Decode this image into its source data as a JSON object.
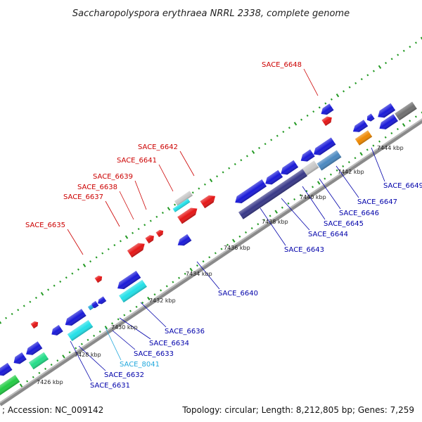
{
  "title": "Saccharopolyspora erythraea NRRL 2338, complete genome",
  "footer": {
    "accession": "; Accession: NC_009142",
    "summary": "Topology: circular; Length: 8,212,805 bp; Genes: 7,259"
  },
  "ruler_ticks": [
    "7426 kbp",
    "7428 kbp",
    "7430 kbp",
    "7432 kbp",
    "7434 kbp",
    "7436 kbp",
    "7438 kbp",
    "7440 kbp",
    "7442 kbp",
    "7444 kbp"
  ],
  "forward_labels": [
    "SACE_6635",
    "SACE_6637",
    "SACE_6638",
    "SACE_6639",
    "SACE_6641",
    "SACE_6642",
    "SACE_6648"
  ],
  "reverse_labels": [
    "SACE_6631",
    "SACE_6632",
    "SACE_8041",
    "SACE_6633",
    "SACE_6634",
    "SACE_6636",
    "SACE_6640",
    "SACE_6643",
    "SACE_6644",
    "SACE_6645",
    "SACE_6646",
    "SACE_6647",
    "SACE_6649"
  ],
  "colors": {
    "forward": "#e51616",
    "reverse": "#1a1ad8",
    "navy": "#383888",
    "cyan": "#22e0e8",
    "green": "#22cc44",
    "mint": "#22dd88",
    "steel": "#4a88c0",
    "orange": "#ee8800",
    "grey": "#707070",
    "light_grey": "#c8c8c8",
    "label_forward": "#cc0000",
    "label_reverse": "#0000aa",
    "label_rna": "#22a8dd"
  }
}
